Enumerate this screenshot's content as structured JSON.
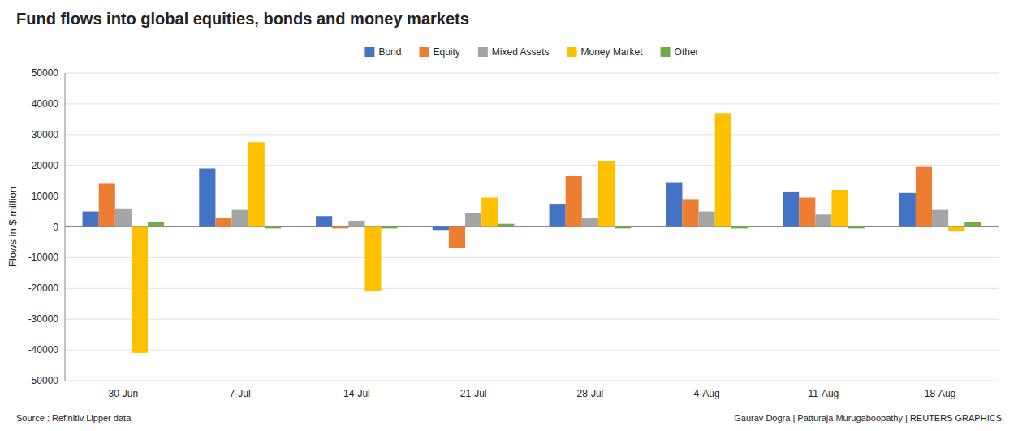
{
  "chart_data": {
    "type": "bar",
    "title": "Fund flows into global equities, bonds and money markets",
    "y_label": "Flows in $ million",
    "annotations": [
      "Source : Refinitiv Lipper data",
      "Gaurav Dogra | Patturaja Murugaboopathy | REUTERS GRAPHICS"
    ],
    "categories": [
      "30-Jun",
      "7-Jul",
      "14-Jul",
      "21-Jul",
      "28-Jul",
      "4-Aug",
      "11-Aug",
      "18-Aug"
    ],
    "series": [
      {
        "name": "Bond",
        "color": "#4472c4",
        "values": [
          5000,
          19000,
          3500,
          -1000,
          7500,
          14500,
          11500,
          11000
        ]
      },
      {
        "name": "Equity",
        "color": "#ed7d31",
        "values": [
          14000,
          3000,
          -500,
          -7000,
          16500,
          9000,
          9500,
          19500
        ]
      },
      {
        "name": "Mixed Assets",
        "color": "#a5a5a5",
        "values": [
          6000,
          5500,
          2000,
          4500,
          3000,
          5000,
          4000,
          5500
        ]
      },
      {
        "name": "Money Market",
        "color": "#ffc000",
        "values": [
          -41000,
          27500,
          -21000,
          9500,
          21500,
          37000,
          12000,
          -1500
        ]
      },
      {
        "name": "Other",
        "color": "#70ad47",
        "values": [
          1500,
          -500,
          -500,
          1000,
          -500,
          -500,
          -500,
          1500
        ]
      }
    ],
    "ylim": [
      -50000,
      50000
    ],
    "yticks": [
      -50000,
      -40000,
      -30000,
      -20000,
      -10000,
      0,
      10000,
      20000,
      30000,
      40000,
      50000
    ],
    "grid": true,
    "legend": "top"
  }
}
